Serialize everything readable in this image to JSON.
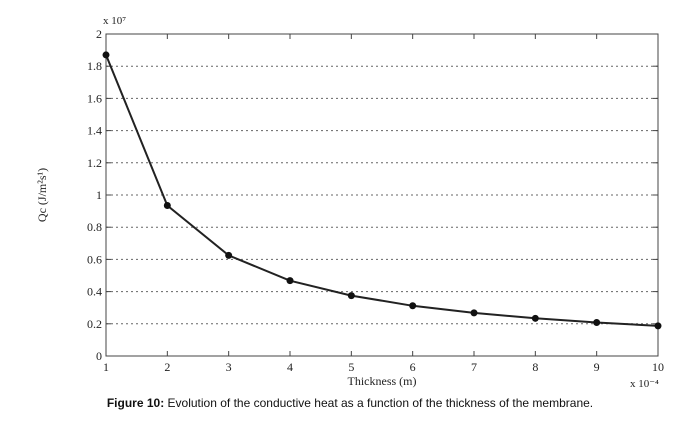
{
  "caption": {
    "label": "Figure 10:",
    "text": " Evolution of the conductive heat as a function of the thickness of the membrane."
  },
  "chart_data": {
    "type": "line",
    "xlabel": "Thickness (m)",
    "ylabel": "Qc (J/m²s¹)",
    "x_multiplier": "x 10⁻⁴",
    "y_multiplier": "x 10⁷",
    "xlim": [
      1,
      10
    ],
    "ylim": [
      0,
      2
    ],
    "x_ticks": [
      "1",
      "2",
      "3",
      "4",
      "5",
      "6",
      "7",
      "8",
      "9",
      "10"
    ],
    "y_ticks": [
      "0",
      "0.2",
      "0.4",
      "0.6",
      "0.8",
      "1",
      "1.2",
      "1.4",
      "1.6",
      "1.8",
      "2"
    ],
    "x_tick_values": [
      1,
      2,
      3,
      4,
      5,
      6,
      7,
      8,
      9,
      10
    ],
    "y_tick_values": [
      0,
      0.2,
      0.4,
      0.6,
      0.8,
      1,
      1.2,
      1.4,
      1.6,
      1.8,
      2
    ],
    "grid": "horizontal dotted",
    "line_color": "#222222",
    "series": [
      {
        "x": [
          1,
          2,
          3,
          4,
          5,
          6,
          7,
          8,
          9,
          10
        ],
        "values": [
          1.87,
          0.935,
          0.625,
          0.468,
          0.375,
          0.312,
          0.268,
          0.234,
          0.208,
          0.187
        ]
      }
    ]
  }
}
